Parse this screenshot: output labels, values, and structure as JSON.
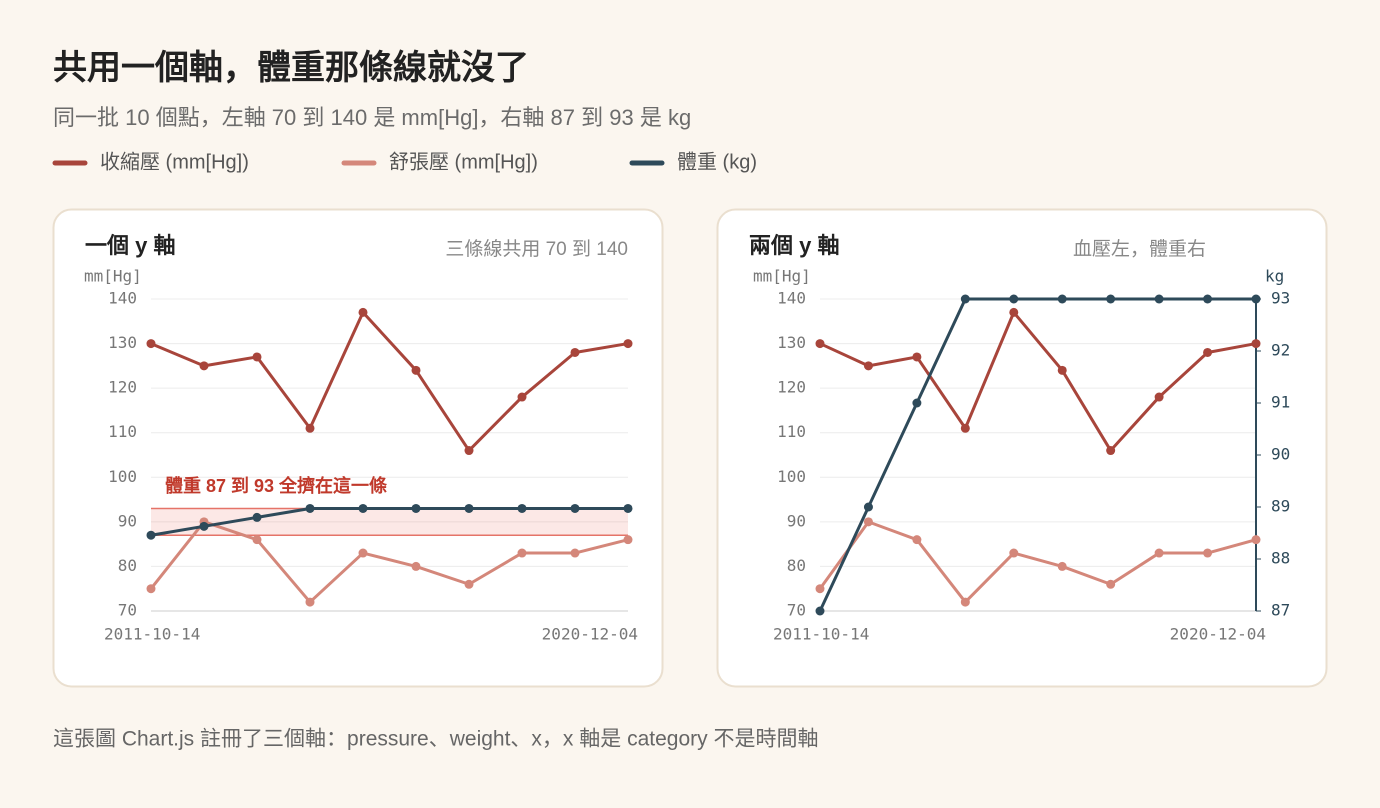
{
  "header": {
    "title": "共用一個軸，體重那條線就沒了",
    "subtitle": "同一批 10 個點，左軸 70 到 140 是 mm[Hg]，右軸 87 到 93 是 kg"
  },
  "chart_data": [
    {
      "type": "line",
      "title": "一個 y 軸",
      "note": "三條線共用 70 到 140",
      "ylabel": "mm[Hg]",
      "categories": [
        "2011-10-14",
        null,
        null,
        null,
        null,
        null,
        null,
        null,
        null,
        "2020-12-04"
      ],
      "series": [
        {
          "name": "收縮壓 (mm[Hg])",
          "color": "#a8453b",
          "values": [
            130,
            125,
            127,
            111,
            137,
            124,
            106,
            118,
            128,
            130
          ]
        },
        {
          "name": "舒張壓 (mm[Hg])",
          "color": "#d4877a",
          "values": [
            75,
            90,
            86,
            72,
            83,
            80,
            76,
            83,
            83,
            86
          ]
        },
        {
          "name": "體重 (kg)",
          "color": "#2e4a5a",
          "values": [
            87,
            89,
            91,
            93,
            93,
            93,
            93,
            93,
            93,
            93
          ]
        }
      ],
      "ylim": [
        70,
        140
      ],
      "yticks": [
        70,
        80,
        90,
        100,
        110,
        120,
        130,
        140
      ],
      "grid": true,
      "band": [
        87,
        93
      ],
      "annotation": "體重 87 到 93 全擠在這一條"
    },
    {
      "type": "line",
      "title": "兩個 y 軸",
      "note": "血壓左，體重右",
      "ylabel": "mm[Hg]",
      "y2label": "kg",
      "categories": [
        "2011-10-14",
        null,
        null,
        null,
        null,
        null,
        null,
        null,
        null,
        "2020-12-04"
      ],
      "series": [
        {
          "name": "收縮壓 (mm[Hg])",
          "color": "#a8453b",
          "values": [
            130,
            125,
            127,
            111,
            137,
            124,
            106,
            118,
            128,
            130
          ]
        },
        {
          "name": "舒張壓 (mm[Hg])",
          "color": "#d4877a",
          "values": [
            75,
            90,
            86,
            72,
            83,
            80,
            76,
            83,
            83,
            86
          ]
        },
        {
          "name": "體重 (kg)",
          "color": "#2e4a5a",
          "axis": "y2",
          "values": [
            87,
            89,
            91,
            93,
            93,
            93,
            93,
            93,
            93,
            93
          ]
        }
      ],
      "ylim": [
        70,
        140
      ],
      "yticks": [
        70,
        80,
        90,
        100,
        110,
        120,
        130,
        140
      ],
      "grid": true,
      "y2lim": [
        87,
        93
      ],
      "y2ticks": [
        87,
        88,
        89,
        90,
        91,
        92,
        93
      ]
    }
  ],
  "footer": "這張圖 Chart.js 註冊了三個軸：pressure、weight、x，x 軸是 category 不是時間軸"
}
